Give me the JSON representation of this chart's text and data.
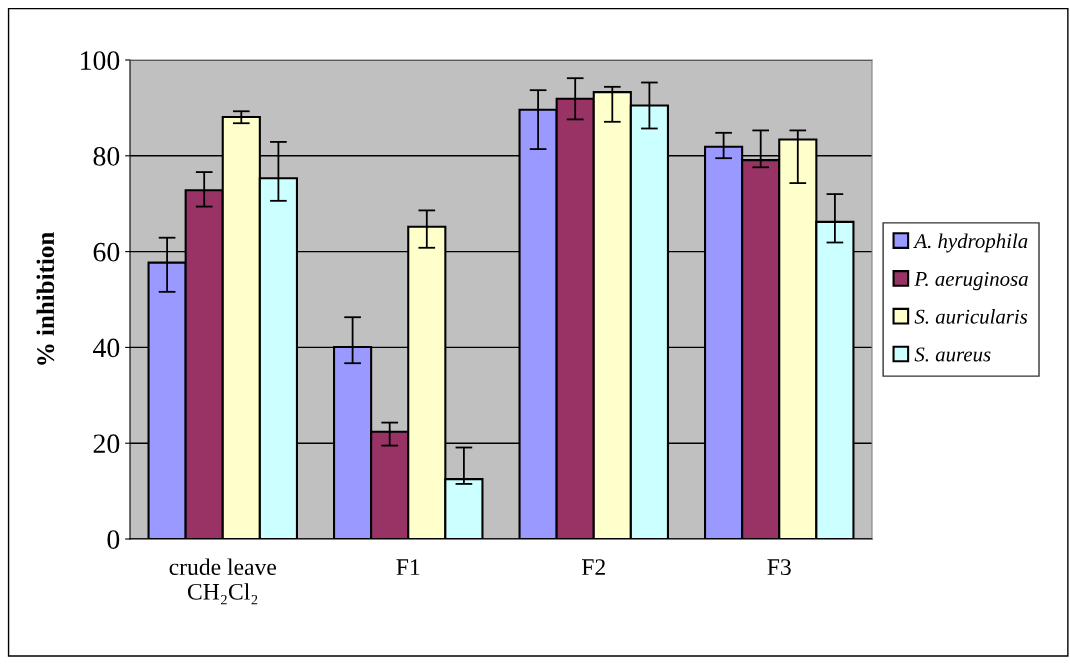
{
  "chart_data": {
    "type": "bar",
    "ylabel": "% inhibition",
    "categories": [
      "crude leave\nCH₂Cl₂",
      "F1",
      "F2",
      "F3"
    ],
    "series": [
      {
        "name": "A. hydrophila",
        "color": "#9999ff",
        "values": [
          57.7,
          40.1,
          89.6,
          81.9
        ],
        "errors": [
          [
            51.6,
            62.9
          ],
          [
            36.7,
            46.3
          ],
          [
            81.4,
            93.7
          ],
          [
            79.5,
            84.8
          ]
        ]
      },
      {
        "name": "P. aeruginosa",
        "color": "#993366",
        "values": [
          72.8,
          22.4,
          91.9,
          79.1
        ],
        "errors": [
          [
            69.4,
            76.6
          ],
          [
            19.5,
            24.3
          ],
          [
            87.6,
            96.2
          ],
          [
            77.6,
            85.3
          ]
        ]
      },
      {
        "name": "S. auricularis",
        "color": "#ffffcc",
        "values": [
          88.1,
          65.2,
          93.3,
          83.4
        ],
        "errors": [
          [
            86.8,
            89.3
          ],
          [
            60.8,
            68.6
          ],
          [
            87.1,
            94.4
          ],
          [
            74.3,
            85.3
          ]
        ]
      },
      {
        "name": "S. aureus",
        "color": "#ccffff",
        "values": [
          75.3,
          12.5,
          90.5,
          66.2
        ],
        "errors": [
          [
            70.6,
            82.9
          ],
          [
            11.5,
            19.1
          ],
          [
            85.7,
            95.3
          ],
          [
            61.9,
            72.0
          ]
        ]
      }
    ],
    "ylim": [
      0,
      100
    ],
    "yticks": [
      0,
      20,
      40,
      60,
      80,
      100
    ],
    "grid": "y",
    "legend": "right"
  }
}
